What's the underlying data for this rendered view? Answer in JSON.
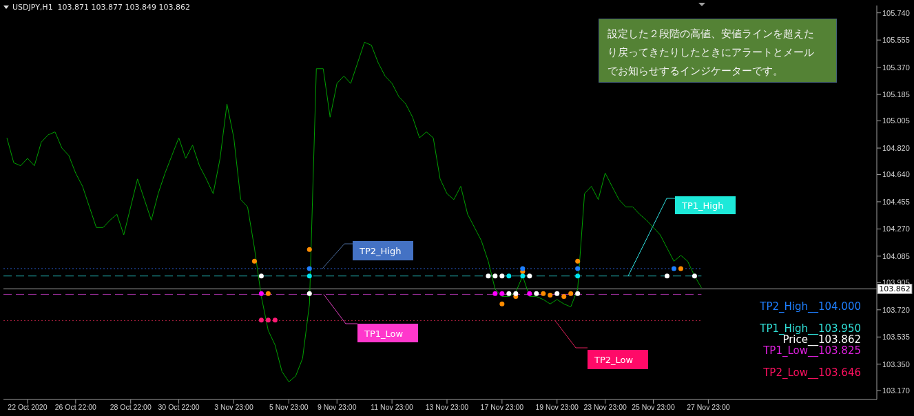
{
  "chart_data": {
    "type": "line",
    "title": "USDJPY,H1  103.871 103.877 103.849 103.862",
    "categories": [
      null,
      null,
      null,
      "22 Oct 2020",
      null,
      null,
      null,
      null,
      null,
      null,
      "26 Oct 22:00",
      null,
      null,
      null,
      null,
      null,
      null,
      null,
      "28 Oct 22:00",
      null,
      null,
      null,
      null,
      null,
      null,
      "30 Oct 22:00",
      null,
      null,
      null,
      null,
      null,
      null,
      null,
      "3 Nov 23:00",
      null,
      null,
      null,
      null,
      null,
      null,
      null,
      "5 Nov 23:00",
      null,
      null,
      null,
      null,
      null,
      null,
      "9 Nov 23:00",
      null,
      null,
      null,
      null,
      null,
      null,
      null,
      "11 Nov 23:00",
      null,
      null,
      null,
      null,
      null,
      null,
      null,
      "13 Nov 23:00",
      null,
      null,
      null,
      null,
      null,
      null,
      null,
      "17 Nov 23:00",
      null,
      null,
      null,
      null,
      null,
      null,
      null,
      "19 Nov 23:00",
      null,
      null,
      null,
      null,
      null,
      null,
      "23 Nov 23:00",
      null,
      null,
      null,
      null,
      null,
      null,
      "25 Nov 23:00",
      null,
      null,
      null,
      null,
      null,
      null,
      null,
      "27 Nov 23:00",
      null,
      null,
      null,
      null,
      null,
      null,
      null,
      null,
      null,
      null,
      null,
      null,
      null,
      null,
      null,
      null,
      null,
      null,
      null,
      null,
      null,
      null,
      null,
      null
    ],
    "series": [
      {
        "type": "line",
        "marker": "none",
        "color": "#00a000",
        "values": [
          104.89,
          104.72,
          104.7,
          104.75,
          104.7,
          104.86,
          104.91,
          104.93,
          104.82,
          104.77,
          104.65,
          104.56,
          104.42,
          104.28,
          104.28,
          104.33,
          104.37,
          104.23,
          104.42,
          104.61,
          104.47,
          104.33,
          104.51,
          104.65,
          104.77,
          104.89,
          104.75,
          104.84,
          104.7,
          104.61,
          104.51,
          104.75,
          105.12,
          104.89,
          104.47,
          104.42,
          104.14,
          103.81,
          103.58,
          103.48,
          103.3,
          103.23,
          103.27,
          103.39,
          103.76,
          105.36,
          105.36,
          105.03,
          105.26,
          105.31,
          105.26,
          105.4,
          105.54,
          105.52,
          105.4,
          105.31,
          105.26,
          105.17,
          105.12,
          105.03,
          104.89,
          104.93,
          104.89,
          104.61,
          104.51,
          104.47,
          104.56,
          104.37,
          104.28,
          104.19,
          104.05,
          103.86,
          103.81,
          103.81,
          103.84,
          103.95,
          103.81,
          103.81,
          103.79,
          103.76,
          103.79,
          103.76,
          103.74,
          103.86,
          104.51,
          104.56,
          104.47,
          104.65,
          104.56,
          104.47,
          104.42,
          104.42,
          104.37,
          104.33,
          104.28,
          104.23,
          104.14,
          104.05,
          104.09,
          104.05,
          103.95,
          103.87,
          null,
          null,
          null,
          null,
          null,
          null,
          null,
          null,
          null,
          null,
          null,
          null,
          null,
          null,
          null,
          null,
          null,
          null,
          null,
          null,
          null,
          null,
          null,
          null,
          null
        ]
      },
      {
        "type": "scatter",
        "marker": "circle",
        "color": "#ff8c00",
        "values": [
          null,
          null,
          null,
          null,
          null,
          null,
          null,
          null,
          null,
          null,
          null,
          null,
          null,
          null,
          null,
          null,
          null,
          null,
          null,
          null,
          null,
          null,
          null,
          null,
          null,
          null,
          null,
          null,
          null,
          null,
          null,
          null,
          null,
          null,
          null,
          null,
          104.05,
          null,
          103.83,
          null,
          null,
          null,
          null,
          null,
          104.13,
          null,
          null,
          null,
          null,
          null,
          null,
          null,
          null,
          null,
          null,
          null,
          null,
          null,
          null,
          null,
          null,
          null,
          null,
          null,
          null,
          null,
          null,
          null,
          null,
          null,
          null,
          null,
          103.76,
          null,
          103.81,
          103.98,
          null,
          null,
          103.83,
          103.82,
          null,
          103.81,
          103.83,
          104.05,
          null,
          null,
          null,
          null,
          null,
          null,
          null,
          null,
          null,
          null,
          null,
          null,
          null,
          null,
          104.0,
          null,
          null,
          null,
          null,
          null,
          null,
          null,
          null,
          null,
          null,
          null,
          null,
          null,
          null,
          null,
          null,
          null,
          null,
          null,
          null,
          null,
          null,
          null,
          null,
          null,
          null,
          null,
          null
        ]
      },
      {
        "type": "scatter",
        "marker": "circle",
        "color": "#1e7fff",
        "values": [
          null,
          null,
          null,
          null,
          null,
          null,
          null,
          null,
          null,
          null,
          null,
          null,
          null,
          null,
          null,
          null,
          null,
          null,
          null,
          null,
          null,
          null,
          null,
          null,
          null,
          null,
          null,
          null,
          null,
          null,
          null,
          null,
          null,
          null,
          null,
          null,
          null,
          null,
          null,
          null,
          null,
          null,
          null,
          null,
          104.0,
          null,
          null,
          null,
          null,
          null,
          null,
          null,
          null,
          null,
          null,
          null,
          null,
          null,
          null,
          null,
          null,
          null,
          null,
          null,
          null,
          null,
          null,
          null,
          null,
          null,
          null,
          null,
          null,
          null,
          null,
          104.0,
          null,
          null,
          null,
          null,
          null,
          null,
          null,
          104.0,
          null,
          null,
          null,
          null,
          null,
          null,
          null,
          null,
          null,
          null,
          null,
          null,
          null,
          104.0,
          null,
          null,
          null,
          null,
          null,
          null,
          null,
          null,
          null,
          null,
          null,
          null,
          null,
          null,
          null,
          null,
          null,
          null,
          null,
          null,
          null,
          null,
          null,
          null,
          null,
          null,
          null,
          null,
          null
        ]
      },
      {
        "type": "scatter",
        "marker": "circle",
        "color": "#ffffff",
        "values": [
          null,
          null,
          null,
          null,
          null,
          null,
          null,
          null,
          null,
          null,
          null,
          null,
          null,
          null,
          null,
          null,
          null,
          null,
          null,
          null,
          null,
          null,
          null,
          null,
          null,
          null,
          null,
          null,
          null,
          null,
          null,
          null,
          null,
          null,
          null,
          null,
          null,
          103.95,
          null,
          null,
          null,
          null,
          null,
          null,
          103.83,
          null,
          null,
          null,
          null,
          null,
          null,
          null,
          null,
          null,
          null,
          null,
          null,
          null,
          null,
          null,
          null,
          null,
          null,
          null,
          null,
          null,
          null,
          null,
          null,
          null,
          103.95,
          103.95,
          103.95,
          103.83,
          103.83,
          null,
          103.95,
          103.83,
          null,
          null,
          103.83,
          null,
          null,
          103.83,
          null,
          null,
          null,
          null,
          null,
          null,
          null,
          null,
          null,
          null,
          null,
          null,
          103.95,
          null,
          null,
          null,
          103.95,
          null,
          null,
          null,
          null,
          null,
          null,
          null,
          null,
          null,
          null,
          null,
          null,
          null,
          null,
          null,
          null,
          null,
          null,
          null,
          null,
          null,
          null,
          null,
          null,
          null,
          null
        ]
      },
      {
        "type": "scatter",
        "marker": "circle",
        "color": "#00e5ee",
        "values": [
          null,
          null,
          null,
          null,
          null,
          null,
          null,
          null,
          null,
          null,
          null,
          null,
          null,
          null,
          null,
          null,
          null,
          null,
          null,
          null,
          null,
          null,
          null,
          null,
          null,
          null,
          null,
          null,
          null,
          null,
          null,
          null,
          null,
          null,
          null,
          null,
          null,
          null,
          null,
          null,
          null,
          null,
          null,
          null,
          103.95,
          null,
          null,
          null,
          null,
          null,
          null,
          null,
          null,
          null,
          null,
          null,
          null,
          null,
          null,
          null,
          null,
          null,
          null,
          null,
          null,
          null,
          null,
          null,
          null,
          null,
          null,
          null,
          null,
          103.95,
          null,
          103.95,
          null,
          null,
          null,
          null,
          null,
          null,
          null,
          103.95,
          null,
          null,
          null,
          null,
          null,
          null,
          null,
          null,
          null,
          null,
          null,
          null,
          null,
          null,
          null,
          null,
          null,
          null,
          null,
          null,
          null,
          null,
          null,
          null,
          null,
          null,
          null,
          null,
          null,
          null,
          null,
          null,
          null,
          null,
          null,
          null,
          null,
          null,
          null,
          null,
          null,
          null,
          null
        ]
      },
      {
        "type": "scatter",
        "marker": "circle",
        "color": "#ff00ff",
        "values": [
          null,
          null,
          null,
          null,
          null,
          null,
          null,
          null,
          null,
          null,
          null,
          null,
          null,
          null,
          null,
          null,
          null,
          null,
          null,
          null,
          null,
          null,
          null,
          null,
          null,
          null,
          null,
          null,
          null,
          null,
          null,
          null,
          null,
          null,
          null,
          null,
          null,
          103.83,
          null,
          null,
          null,
          null,
          null,
          null,
          null,
          null,
          null,
          null,
          null,
          null,
          null,
          null,
          null,
          null,
          null,
          null,
          null,
          null,
          null,
          null,
          null,
          null,
          null,
          null,
          null,
          null,
          null,
          null,
          null,
          null,
          null,
          103.83,
          103.83,
          null,
          null,
          null,
          103.83,
          null,
          null,
          null,
          null,
          null,
          null,
          null,
          null,
          null,
          null,
          null,
          null,
          null,
          null,
          null,
          null,
          null,
          null,
          null,
          null,
          null,
          null,
          null,
          null,
          null,
          null,
          null,
          null,
          null,
          null,
          null,
          null,
          null,
          null,
          null,
          null,
          null,
          null,
          null,
          null,
          null,
          null,
          null,
          null,
          null,
          null,
          null,
          null,
          null,
          null
        ]
      },
      {
        "type": "scatter",
        "marker": "circle",
        "color": "#ff1a75",
        "values": [
          null,
          null,
          null,
          null,
          null,
          null,
          null,
          null,
          null,
          null,
          null,
          null,
          null,
          null,
          null,
          null,
          null,
          null,
          null,
          null,
          null,
          null,
          null,
          null,
          null,
          null,
          null,
          null,
          null,
          null,
          null,
          null,
          null,
          null,
          null,
          null,
          null,
          103.65,
          103.65,
          103.65,
          null,
          null,
          null,
          null,
          null,
          null,
          null,
          null,
          null,
          null,
          null,
          null,
          null,
          null,
          null,
          null,
          null,
          null,
          null,
          null,
          null,
          null,
          null,
          null,
          null,
          null,
          null,
          null,
          null,
          null,
          null,
          null,
          null,
          null,
          null,
          null,
          null,
          null,
          null,
          null,
          null,
          null,
          null,
          null,
          null,
          null,
          null,
          null,
          null,
          null,
          null,
          null,
          null,
          null,
          null,
          null,
          null,
          null,
          null,
          null,
          null,
          null,
          null,
          null,
          null,
          null,
          null,
          null,
          null,
          null,
          null,
          null,
          null,
          null,
          null,
          null,
          null,
          null,
          null,
          null,
          null,
          null,
          null,
          null,
          null,
          null,
          null
        ]
      }
    ],
    "ylim": [
      103.11,
      105.79
    ],
    "yticks": [
      {
        "value": 103.17,
        "label": "103.170"
      },
      {
        "value": 103.35,
        "label": "103.350"
      },
      103.535,
      {
        "value": 103.72,
        "label": "103.720"
      },
      103.905,
      104.085,
      {
        "value": 104.27,
        "label": "104.270"
      },
      104.455,
      {
        "value": 104.64,
        "label": "104.640"
      },
      {
        "value": 104.82,
        "label": "104.820"
      },
      105.005,
      105.185,
      {
        "value": 105.37,
        "label": "105.370"
      },
      105.555,
      {
        "value": 105.74,
        "label": "105.740"
      }
    ],
    "grid": false,
    "legend": false,
    "line_style": "solid",
    "ref_lines": [
      {
        "axis": "y",
        "value": 104.0,
        "label": "TP2_High",
        "color": "#2a5cd0",
        "line_style": "dotted"
      },
      {
        "axis": "y",
        "value": 103.95,
        "label": "TP1_High",
        "color": "#20b0b0",
        "line_style": "dashed"
      },
      {
        "axis": "y",
        "value": 103.862,
        "label": "103.862",
        "color": "#b0b0b0",
        "line_style": "solid"
      },
      {
        "axis": "y",
        "value": 103.825,
        "label": "TP1_Low",
        "color": "#a030a0",
        "line_style": "dashed"
      },
      {
        "axis": "y",
        "value": 103.646,
        "label": "TP2_Low",
        "color": "#b02040",
        "line_style": "dotted"
      }
    ],
    "annotations": [
      "設定した２段階の高値、安値ラインを超えたり戻ってきたりしたときにアラートとメールでお知らせするインジケーターです。",
      "TP2_High__104.000",
      "TP1_High__103.950",
      "Price__103.862",
      "TP1_Low__103.825",
      "TP2_Low__103.646"
    ]
  }
}
